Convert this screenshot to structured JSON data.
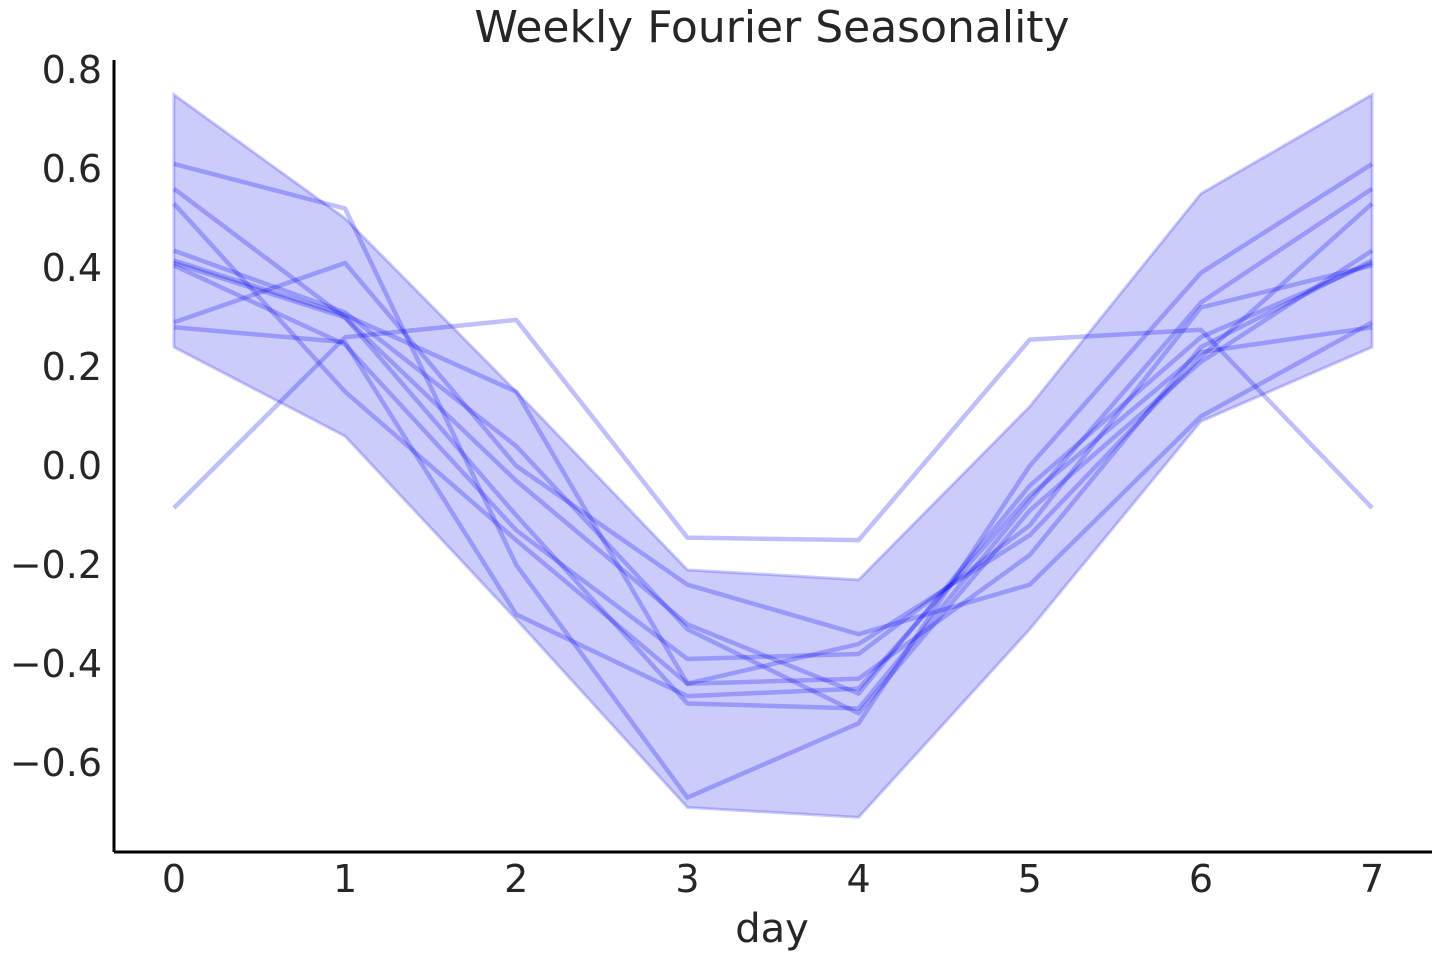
{
  "chart_data": {
    "type": "line",
    "title": "Weekly Fourier Seasonality",
    "xlabel": "day",
    "ylabel": "",
    "x": [
      0,
      1,
      2,
      3,
      4,
      5,
      6,
      7
    ],
    "xlim": [
      -0.35,
      7.35
    ],
    "ylim": [
      -0.78,
      0.82
    ],
    "x_ticks": [
      0,
      1,
      2,
      3,
      4,
      5,
      6,
      7
    ],
    "x_tick_labels": [
      "0",
      "1",
      "2",
      "3",
      "4",
      "5",
      "6",
      "7"
    ],
    "y_ticks": [
      -0.6,
      -0.4,
      -0.2,
      0.0,
      0.2,
      0.4,
      0.6,
      0.8
    ],
    "y_tick_labels": [
      "−0.6",
      "−0.4",
      "−0.2",
      "0.0",
      "0.2",
      "0.4",
      "0.6",
      "0.8"
    ],
    "grid": false,
    "color": "#0000ee",
    "band": {
      "upper": [
        0.75,
        0.5,
        0.15,
        -0.21,
        -0.23,
        0.12,
        0.55,
        0.75
      ],
      "lower": [
        0.24,
        0.06,
        -0.31,
        -0.69,
        -0.71,
        -0.33,
        0.09,
        0.24
      ]
    },
    "series": [
      {
        "values": [
          -0.085,
          0.26,
          0.295,
          -0.145,
          -0.15,
          0.255,
          0.275,
          -0.085
        ]
      },
      {
        "values": [
          0.61,
          0.52,
          -0.2,
          -0.67,
          -0.52,
          0.0,
          0.39,
          0.61
        ]
      },
      {
        "values": [
          0.56,
          0.3,
          -0.1,
          -0.48,
          -0.49,
          -0.07,
          0.33,
          0.56
        ]
      },
      {
        "values": [
          0.53,
          0.15,
          -0.15,
          -0.44,
          -0.36,
          -0.14,
          0.22,
          0.53
        ]
      },
      {
        "values": [
          0.435,
          0.31,
          0.04,
          -0.33,
          -0.5,
          -0.09,
          0.21,
          0.435
        ]
      },
      {
        "values": [
          0.415,
          0.305,
          0.15,
          -0.44,
          -0.43,
          -0.18,
          0.24,
          0.415
        ]
      },
      {
        "values": [
          0.405,
          0.245,
          -0.13,
          -0.39,
          -0.38,
          -0.12,
          0.32,
          0.405
        ]
      },
      {
        "values": [
          0.29,
          0.41,
          0.0,
          -0.24,
          -0.34,
          -0.24,
          0.1,
          0.29
        ]
      },
      {
        "values": [
          0.28,
          0.25,
          -0.3,
          -0.465,
          -0.45,
          -0.06,
          0.23,
          0.28
        ]
      },
      {
        "values": [
          0.41,
          0.3,
          -0.03,
          -0.32,
          -0.46,
          -0.04,
          0.26,
          0.41
        ]
      }
    ]
  }
}
